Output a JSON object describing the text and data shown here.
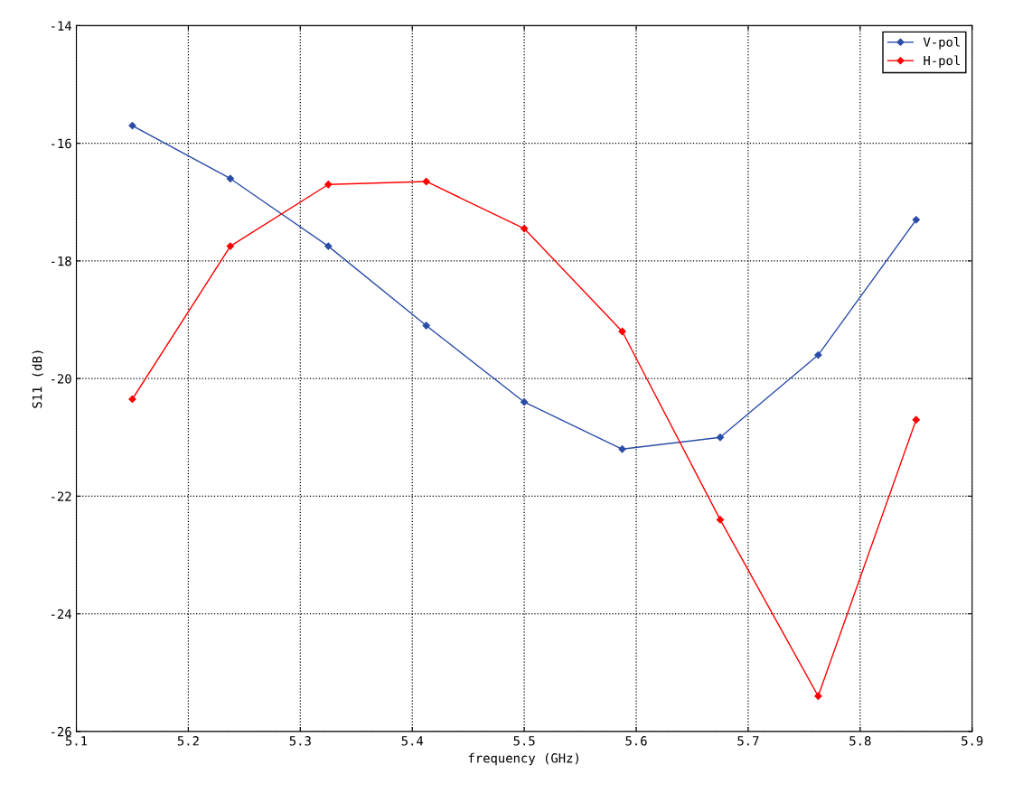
{
  "chart_data": {
    "type": "line",
    "xlabel": "frequency (GHz)",
    "ylabel": "S11 (dB)",
    "x": [
      5.15,
      5.2375,
      5.325,
      5.4125,
      5.5,
      5.5875,
      5.675,
      5.7625,
      5.85
    ],
    "series": [
      {
        "name": "V-pol",
        "color": "#2b4da8",
        "values": [
          -15.7,
          -16.6,
          -17.75,
          -19.1,
          -20.4,
          -21.2,
          -21.0,
          -19.6,
          -17.3
        ]
      },
      {
        "name": "H-pol",
        "color": "#ff0000",
        "values": [
          -20.35,
          -17.75,
          -16.7,
          -16.65,
          -17.45,
          -19.2,
          -22.4,
          -25.4,
          -20.7
        ]
      }
    ],
    "xlim": [
      5.1,
      5.9
    ],
    "xticks": [
      5.1,
      5.2,
      5.3,
      5.4,
      5.5,
      5.6,
      5.7,
      5.8,
      5.9
    ],
    "ylim": [
      -26,
      -14
    ],
    "yticks": [
      -26,
      -24,
      -22,
      -20,
      -18,
      -16,
      -14
    ],
    "grid": true,
    "legend": "top right",
    "marker": "diamond",
    "line_style": "solid"
  }
}
